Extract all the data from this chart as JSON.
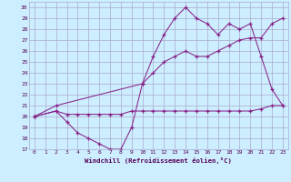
{
  "xlabel": "Windchill (Refroidissement éolien,°C)",
  "bg_color": "#cceeff",
  "grid_color": "#aaaacc",
  "line_color": "#882288",
  "xlim": [
    -0.5,
    23.5
  ],
  "ylim": [
    17,
    30.5
  ],
  "xticks": [
    0,
    1,
    2,
    3,
    4,
    5,
    6,
    7,
    8,
    9,
    10,
    11,
    12,
    13,
    14,
    15,
    16,
    17,
    18,
    19,
    20,
    21,
    22,
    23
  ],
  "yticks": [
    17,
    18,
    19,
    20,
    21,
    22,
    23,
    24,
    25,
    26,
    27,
    28,
    29,
    30
  ],
  "line1_x": [
    0,
    2,
    3,
    4,
    5,
    6,
    7,
    8,
    9,
    10,
    11,
    12,
    13,
    14,
    15,
    16,
    17,
    18,
    19,
    20,
    21,
    22,
    23
  ],
  "line1_y": [
    20,
    20.5,
    20.2,
    20.2,
    20.2,
    20.2,
    20.2,
    20.2,
    20.5,
    20.5,
    20.5,
    20.5,
    20.5,
    20.5,
    20.5,
    20.5,
    20.5,
    20.5,
    20.5,
    20.5,
    20.7,
    21.0,
    21.0
  ],
  "line2_x": [
    0,
    2,
    3,
    4,
    5,
    6,
    7,
    8,
    9,
    10,
    11,
    12,
    13,
    14,
    15,
    16,
    17,
    18,
    19,
    20,
    21,
    22,
    23
  ],
  "line2_y": [
    20,
    20.5,
    19.5,
    18.5,
    18.0,
    17.5,
    17.0,
    17.0,
    19.0,
    23.0,
    25.5,
    27.5,
    29.0,
    30.0,
    29.0,
    28.5,
    27.5,
    28.5,
    28.0,
    28.5,
    25.5,
    22.5,
    21.0
  ],
  "line3_x": [
    0,
    2,
    10,
    11,
    12,
    13,
    14,
    15,
    16,
    17,
    18,
    19,
    20,
    21,
    22,
    23
  ],
  "line3_y": [
    20,
    21,
    23,
    24,
    25,
    25.5,
    26,
    25.5,
    25.5,
    26,
    26.5,
    27,
    27.2,
    27.2,
    28.5,
    29.0
  ]
}
